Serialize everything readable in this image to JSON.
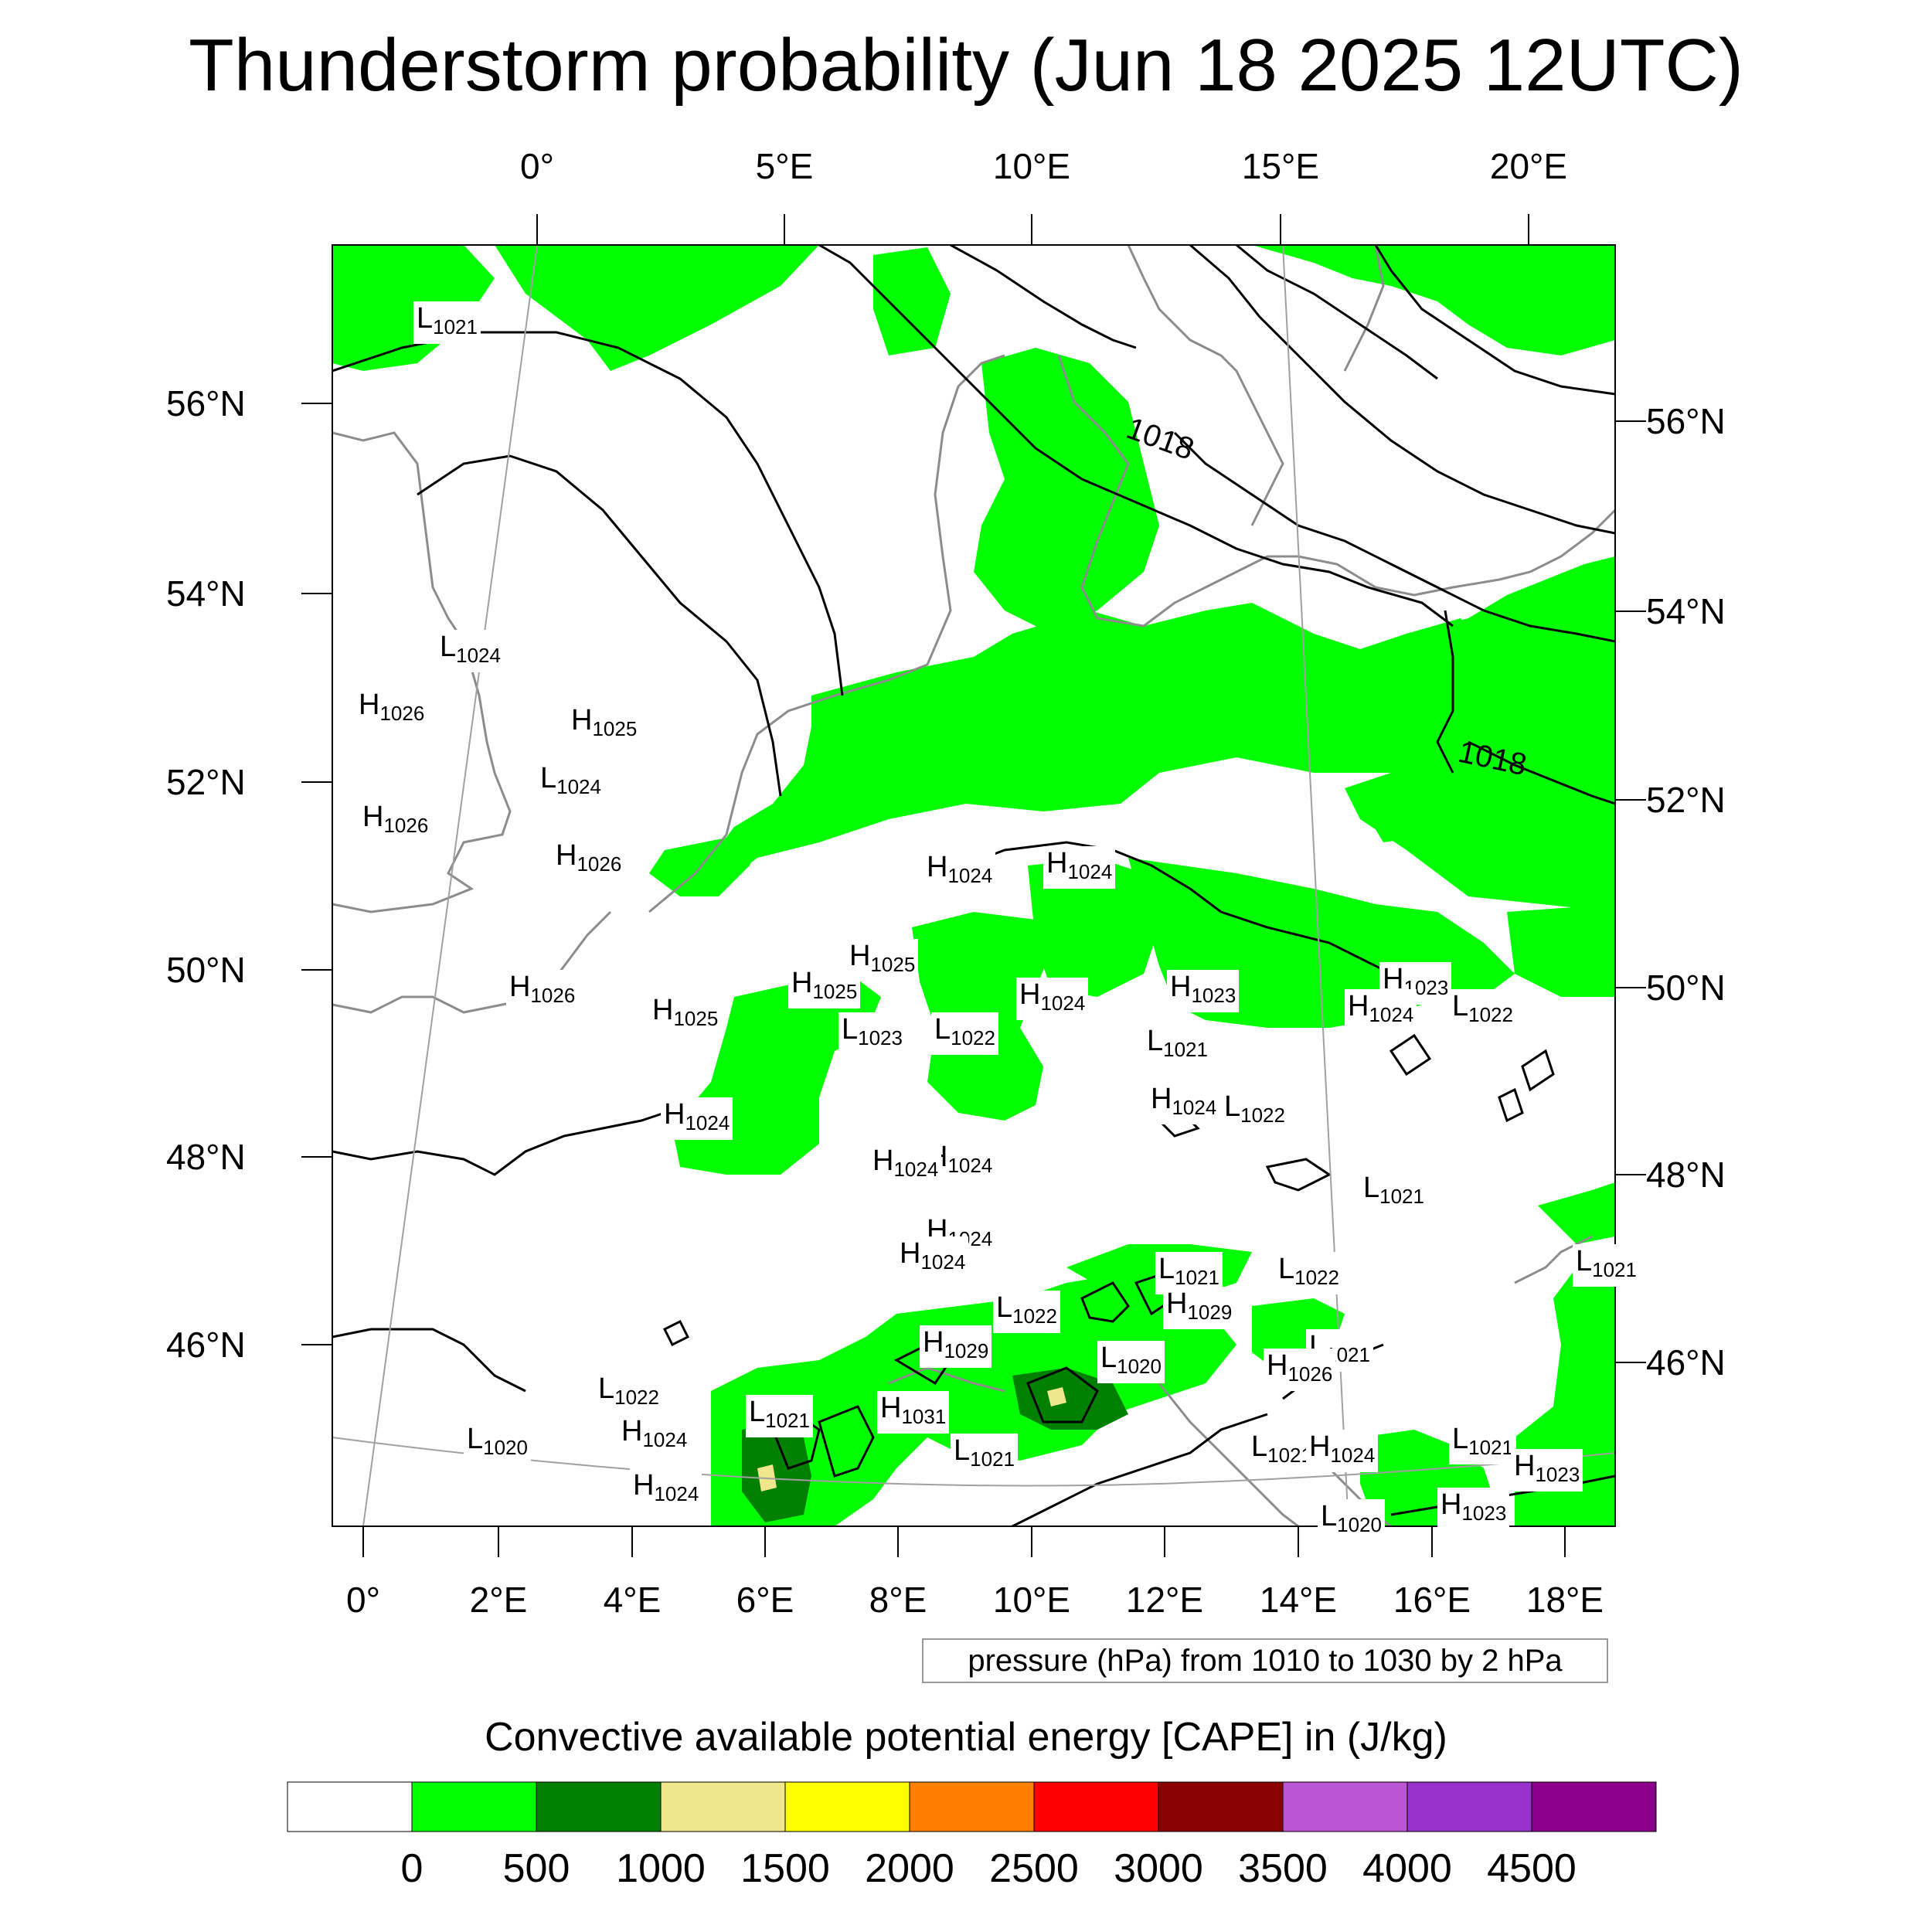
{
  "title": "Thunderstorm probability (Jun 18 2025 12UTC)",
  "top_axis_labels": [
    "0°",
    "5°E",
    "10°E",
    "15°E",
    "20°E"
  ],
  "bottom_axis_labels": [
    "0°",
    "2°E",
    "4°E",
    "6°E",
    "8°E",
    "10°E",
    "12°E",
    "14°E",
    "16°E",
    "18°E"
  ],
  "left_axis_labels": [
    "56°N",
    "54°N",
    "52°N",
    "50°N",
    "48°N",
    "46°N"
  ],
  "right_axis_labels": [
    "56°N",
    "54°N",
    "52°N",
    "50°N",
    "48°N",
    "46°N"
  ],
  "contour_labels": [
    "1018",
    "1018"
  ],
  "pressure_note": "pressure (hPa) from 1010 to 1030 by 2 hPa",
  "colorbar": {
    "title": "Convective available potential energy [CAPE] in (J/kg)",
    "labels": [
      "0",
      "500",
      "1000",
      "1500",
      "2000",
      "2500",
      "3000",
      "3500",
      "4000",
      "4500"
    ],
    "colors": [
      "#ffffff",
      "#00ff00",
      "#007f00",
      "#f0e68c",
      "#ffff00",
      "#ff8000",
      "#ff0000",
      "#8b0000",
      "#ba55d3",
      "#9932cc",
      "#8b008b"
    ]
  },
  "pressure_centers": [
    {
      "type": "L",
      "value": "1021"
    },
    {
      "type": "L",
      "value": "1024"
    },
    {
      "type": "H",
      "value": "1026"
    },
    {
      "type": "H",
      "value": "1025"
    },
    {
      "type": "L",
      "value": "1024"
    },
    {
      "type": "H",
      "value": "1026"
    },
    {
      "type": "H",
      "value": "1026"
    },
    {
      "type": "H",
      "value": "1026"
    },
    {
      "type": "H",
      "value": "1025"
    },
    {
      "type": "H",
      "value": "1025"
    },
    {
      "type": "H",
      "value": "1025"
    },
    {
      "type": "L",
      "value": "1023"
    },
    {
      "type": "L",
      "value": "1022"
    },
    {
      "type": "H",
      "value": "1024"
    },
    {
      "type": "H",
      "value": "1024"
    },
    {
      "type": "H",
      "value": "1024"
    },
    {
      "type": "L",
      "value": "1022"
    },
    {
      "type": "H",
      "value": "1024"
    },
    {
      "type": "L",
      "value": "1021"
    },
    {
      "type": "H",
      "value": "1024"
    },
    {
      "type": "H",
      "value": "1023"
    },
    {
      "type": "H",
      "value": "1023"
    },
    {
      "type": "H",
      "value": "1024"
    },
    {
      "type": "L",
      "value": "1022"
    },
    {
      "type": "H",
      "value": "1024"
    },
    {
      "type": "L",
      "value": "1022"
    },
    {
      "type": "H",
      "value": "1024"
    },
    {
      "type": "L",
      "value": "1021"
    },
    {
      "type": "H",
      "value": "1024"
    },
    {
      "type": "L",
      "value": "1021"
    },
    {
      "type": "L",
      "value": "1022"
    },
    {
      "type": "H",
      "value": "1024"
    },
    {
      "type": "L",
      "value": "1022"
    },
    {
      "type": "L",
      "value": "1021"
    },
    {
      "type": "H",
      "value": "1029"
    },
    {
      "type": "H",
      "value": "1029"
    },
    {
      "type": "L",
      "value": "1020"
    },
    {
      "type": "L",
      "value": "1021"
    },
    {
      "type": "H",
      "value": "1026"
    },
    {
      "type": "L",
      "value": "1022"
    },
    {
      "type": "H",
      "value": "1024"
    },
    {
      "type": "H",
      "value": "1031"
    },
    {
      "type": "L",
      "value": "1021"
    },
    {
      "type": "L",
      "value": "1020"
    },
    {
      "type": "H",
      "value": "1024"
    },
    {
      "type": "L",
      "value": "1021"
    },
    {
      "type": "L",
      "value": "1021"
    },
    {
      "type": "H",
      "value": "1023"
    },
    {
      "type": "H",
      "value": "1024"
    },
    {
      "type": "H",
      "value": "1023"
    },
    {
      "type": "L",
      "value": "1020"
    },
    {
      "type": "L",
      "value": "1021"
    }
  ]
}
